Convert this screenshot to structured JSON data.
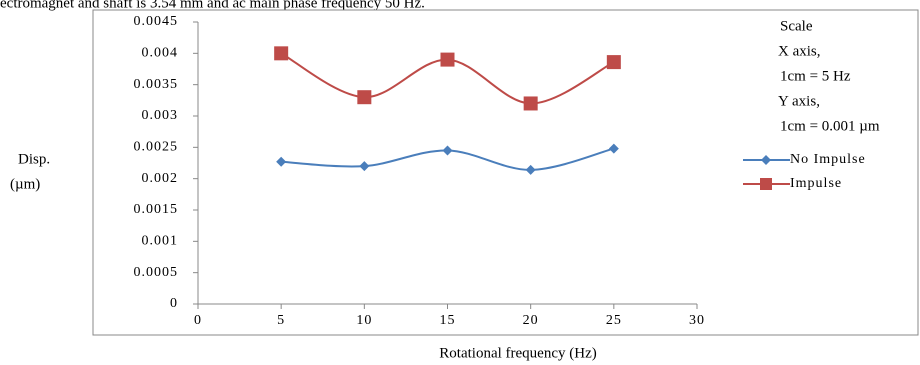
{
  "caption": "ectromagnet and shaft is 3.54 mm and ac main phase frequency 50 Hz.",
  "chart_data": {
    "type": "line",
    "xlabel": "Rotational frequency (Hz)",
    "ylabel_lines": [
      "Disp.",
      "(µm)"
    ],
    "x": [
      5,
      10,
      15,
      20,
      25
    ],
    "series": [
      {
        "name": "No Impulse",
        "color": "#4a7ebb",
        "marker": "diamond",
        "values": [
          0.00227,
          0.0022,
          0.00245,
          0.00214,
          0.00248
        ]
      },
      {
        "name": "Impulse",
        "color": "#be4b48",
        "marker": "square",
        "values": [
          0.004,
          0.0033,
          0.0039,
          0.0032,
          0.00386
        ]
      }
    ],
    "xlim": [
      0,
      30
    ],
    "xticks": [
      0,
      5,
      10,
      15,
      20,
      25,
      30
    ],
    "ylim": [
      0,
      0.0045
    ],
    "yticks": [
      0,
      0.0005,
      0.001,
      0.0015,
      0.002,
      0.0025,
      0.003,
      0.0035,
      0.004,
      0.0045
    ],
    "grid": false,
    "smooth": true,
    "legend_position": "right",
    "annotations": [
      "Scale",
      "X axis,",
      "1cm = 5 Hz",
      "Y axis,",
      "1cm = 0.001 µm"
    ]
  }
}
